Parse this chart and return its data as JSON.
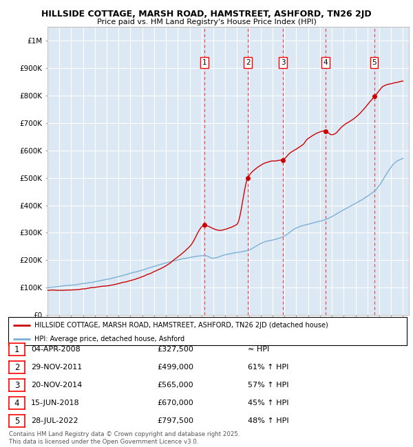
{
  "title1": "HILLSIDE COTTAGE, MARSH ROAD, HAMSTREET, ASHFORD, TN26 2JD",
  "title2": "Price paid vs. HM Land Registry's House Price Index (HPI)",
  "background_color": "#dce9f5",
  "red_line_color": "#cc0000",
  "blue_line_color": "#7ab0d4",
  "sale_dates_num": [
    2008.26,
    2011.91,
    2014.89,
    2018.45,
    2022.57
  ],
  "sale_prices": [
    327500,
    499000,
    565000,
    670000,
    797500
  ],
  "sale_labels": [
    "1",
    "2",
    "3",
    "4",
    "5"
  ],
  "sale_date_strs": [
    "04-APR-2008",
    "29-NOV-2011",
    "20-NOV-2014",
    "15-JUN-2018",
    "28-JUL-2022"
  ],
  "sale_price_strs": [
    "£327,500",
    "£499,000",
    "£565,000",
    "£670,000",
    "£797,500"
  ],
  "sale_hpi_strs": [
    "≈ HPI",
    "61% ↑ HPI",
    "57% ↑ HPI",
    "45% ↑ HPI",
    "48% ↑ HPI"
  ],
  "xmin": 1995,
  "xmax": 2025.5,
  "ymin": 0,
  "ymax": 1050000,
  "yticks": [
    0,
    100000,
    200000,
    300000,
    400000,
    500000,
    600000,
    700000,
    800000,
    900000,
    1000000
  ],
  "ytick_labels": [
    "£0",
    "£100K",
    "£200K",
    "£300K",
    "£400K",
    "£500K",
    "£600K",
    "£700K",
    "£800K",
    "£900K",
    "£1M"
  ],
  "footer_text": "Contains HM Land Registry data © Crown copyright and database right 2025.\nThis data is licensed under the Open Government Licence v3.0.",
  "legend_red_label": "HILLSIDE COTTAGE, MARSH ROAD, HAMSTREET, ASHFORD, TN26 2JD (detached house)",
  "legend_blue_label": "HPI: Average price, detached house, Ashford"
}
